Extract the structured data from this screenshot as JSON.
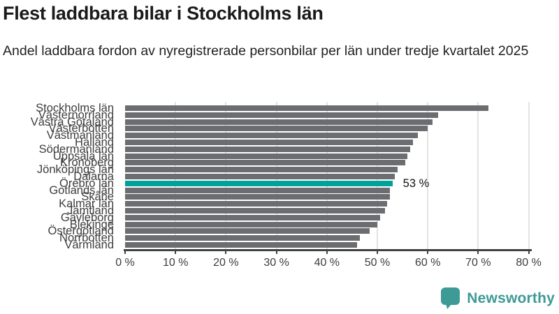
{
  "header": {
    "title": "Flest laddbara bilar i Stockholms län",
    "subtitle": "Andel laddbara fordon av nyregistrerade personbilar per län under tredje kvartalet 2025"
  },
  "chart_data": {
    "type": "bar",
    "orientation": "horizontal",
    "title": "Flest laddbara bilar i Stockholms län",
    "xlabel": "",
    "ylabel": "",
    "xlim": [
      0,
      80
    ],
    "grid": true,
    "x_ticks": [
      "0 %",
      "10 %",
      "20 %",
      "30 %",
      "40 %",
      "50 %",
      "60 %",
      "70 %",
      "80 %"
    ],
    "x_tick_values": [
      0,
      10,
      20,
      30,
      40,
      50,
      60,
      70,
      80
    ],
    "categories": [
      "Stockholms län",
      "Västernorrland",
      "Västra Götaland",
      "Västerbotten",
      "Västmanland",
      "Halland",
      "Södermanland",
      "Uppsala län",
      "Kronoberg",
      "Jönköpings län",
      "Dalarna",
      "Örebro län",
      "Gotlands län",
      "Skåne",
      "Kalmar län",
      "Jämtland",
      "Gävleborg",
      "Blekinge",
      "Östergötland",
      "Norrbotten",
      "Värmland"
    ],
    "values": [
      72,
      62,
      61,
      60,
      58,
      57,
      56.5,
      56,
      55.5,
      54,
      53.5,
      53,
      52.5,
      52.5,
      52,
      51.5,
      50.5,
      50,
      48.5,
      46.5,
      46
    ],
    "highlight": {
      "category": "Örebro län",
      "index": 11,
      "value": 53,
      "value_label": "53 %"
    },
    "colors": {
      "bar": "#6c6d70",
      "highlight": "#00a19b",
      "gridline": "#e3e3e3",
      "axis": "#414141"
    }
  },
  "footer": {
    "brand": "Newsworthy",
    "brand_color": "#3d9a96",
    "logo_icon": "bar-chart-speech-bubble-icon"
  }
}
